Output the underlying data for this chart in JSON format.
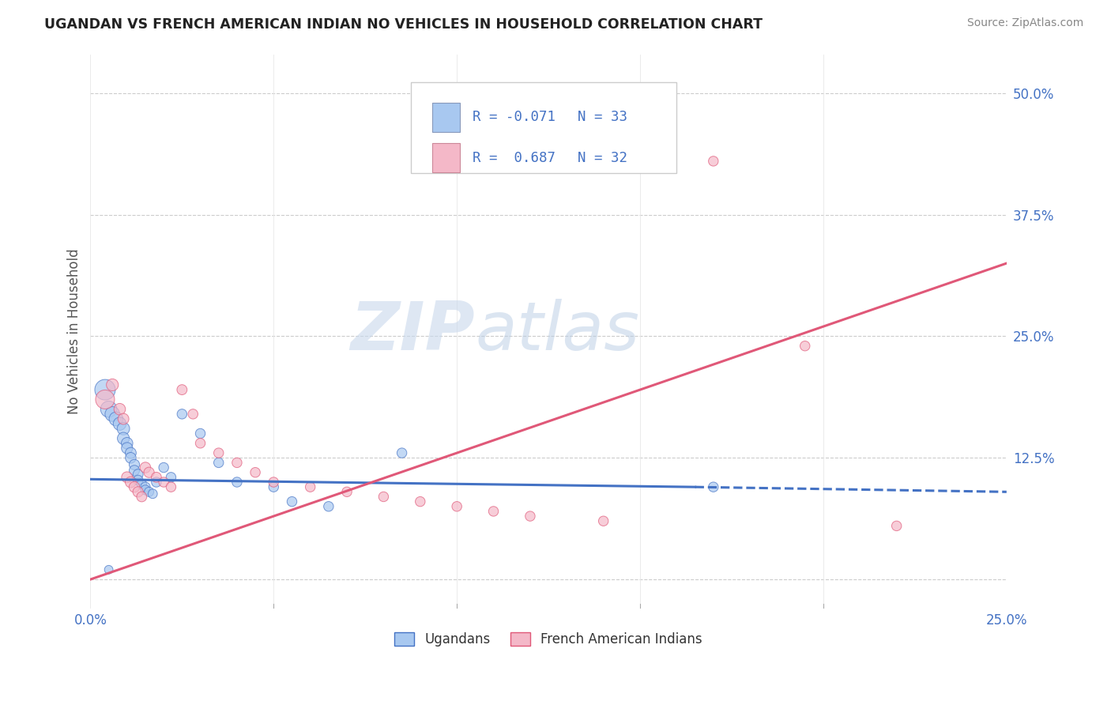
{
  "title": "UGANDAN VS FRENCH AMERICAN INDIAN NO VEHICLES IN HOUSEHOLD CORRELATION CHART",
  "source": "Source: ZipAtlas.com",
  "ylabel": "No Vehicles in Household",
  "xlim": [
    0.0,
    0.25
  ],
  "ylim": [
    -0.03,
    0.54
  ],
  "yticks_right": [
    0.0,
    0.125,
    0.25,
    0.375,
    0.5
  ],
  "yticklabels_right": [
    "",
    "12.5%",
    "25.0%",
    "37.5%",
    "50.0%"
  ],
  "xtick_vals": [
    0.0,
    0.05,
    0.1,
    0.15,
    0.2,
    0.25
  ],
  "color_ugandan": "#a8c8f0",
  "color_french": "#f4b8c8",
  "line_color_ugandan": "#4472c4",
  "line_color_french": "#e05878",
  "watermark_zip": "ZIP",
  "watermark_atlas": "atlas",
  "ugandan_points": [
    [
      0.004,
      0.195
    ],
    [
      0.005,
      0.175
    ],
    [
      0.006,
      0.17
    ],
    [
      0.007,
      0.165
    ],
    [
      0.008,
      0.16
    ],
    [
      0.009,
      0.155
    ],
    [
      0.009,
      0.145
    ],
    [
      0.01,
      0.14
    ],
    [
      0.01,
      0.135
    ],
    [
      0.011,
      0.13
    ],
    [
      0.011,
      0.125
    ],
    [
      0.012,
      0.118
    ],
    [
      0.012,
      0.112
    ],
    [
      0.013,
      0.108
    ],
    [
      0.013,
      0.102
    ],
    [
      0.014,
      0.098
    ],
    [
      0.015,
      0.095
    ],
    [
      0.015,
      0.092
    ],
    [
      0.016,
      0.09
    ],
    [
      0.017,
      0.088
    ],
    [
      0.018,
      0.1
    ],
    [
      0.02,
      0.115
    ],
    [
      0.022,
      0.105
    ],
    [
      0.025,
      0.17
    ],
    [
      0.03,
      0.15
    ],
    [
      0.035,
      0.12
    ],
    [
      0.04,
      0.1
    ],
    [
      0.05,
      0.095
    ],
    [
      0.055,
      0.08
    ],
    [
      0.065,
      0.075
    ],
    [
      0.085,
      0.13
    ],
    [
      0.17,
      0.095
    ],
    [
      0.005,
      0.01
    ]
  ],
  "ugandan_sizes": [
    350,
    220,
    180,
    160,
    140,
    130,
    120,
    110,
    105,
    100,
    95,
    90,
    88,
    85,
    82,
    80,
    78,
    76,
    74,
    72,
    80,
    80,
    80,
    80,
    80,
    80,
    80,
    80,
    80,
    80,
    80,
    80,
    60
  ],
  "french_points": [
    [
      0.004,
      0.185
    ],
    [
      0.006,
      0.2
    ],
    [
      0.008,
      0.175
    ],
    [
      0.009,
      0.165
    ],
    [
      0.01,
      0.105
    ],
    [
      0.011,
      0.1
    ],
    [
      0.012,
      0.095
    ],
    [
      0.013,
      0.09
    ],
    [
      0.014,
      0.085
    ],
    [
      0.015,
      0.115
    ],
    [
      0.016,
      0.11
    ],
    [
      0.018,
      0.105
    ],
    [
      0.02,
      0.1
    ],
    [
      0.022,
      0.095
    ],
    [
      0.025,
      0.195
    ],
    [
      0.028,
      0.17
    ],
    [
      0.03,
      0.14
    ],
    [
      0.035,
      0.13
    ],
    [
      0.04,
      0.12
    ],
    [
      0.045,
      0.11
    ],
    [
      0.05,
      0.1
    ],
    [
      0.06,
      0.095
    ],
    [
      0.07,
      0.09
    ],
    [
      0.08,
      0.085
    ],
    [
      0.09,
      0.08
    ],
    [
      0.1,
      0.075
    ],
    [
      0.11,
      0.07
    ],
    [
      0.12,
      0.065
    ],
    [
      0.14,
      0.06
    ],
    [
      0.17,
      0.43
    ],
    [
      0.195,
      0.24
    ],
    [
      0.22,
      0.055
    ]
  ],
  "french_sizes": [
    300,
    120,
    110,
    100,
    100,
    100,
    95,
    90,
    85,
    95,
    90,
    85,
    80,
    80,
    85,
    80,
    80,
    80,
    80,
    80,
    80,
    80,
    80,
    80,
    80,
    80,
    80,
    80,
    80,
    80,
    80,
    80
  ],
  "ugandan_line_solid": [
    [
      0.0,
      0.103
    ],
    [
      0.165,
      0.095
    ]
  ],
  "ugandan_line_dashed": [
    [
      0.165,
      0.095
    ],
    [
      0.25,
      0.09
    ]
  ],
  "french_line": [
    [
      0.0,
      0.0
    ],
    [
      0.25,
      0.325
    ]
  ]
}
